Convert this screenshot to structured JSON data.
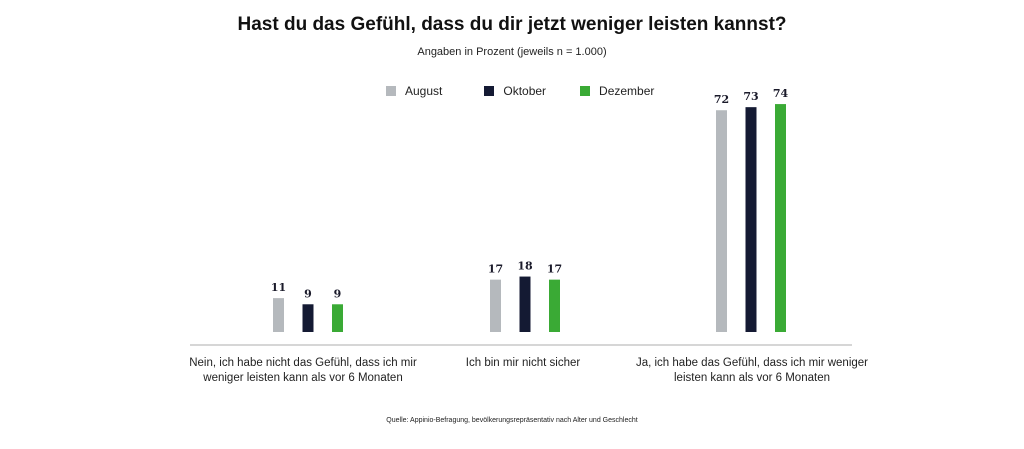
{
  "chart_data": {
    "type": "bar",
    "title": "Hast du das Gefühl, dass du dir jetzt weniger leisten kannst?",
    "subtitle": "Angaben in Prozent (jeweils n = 1.000)",
    "categories": [
      "Nein, ich habe nicht das Gefühl, dass ich mir weniger leisten kann als vor 6 Monaten",
      "Ich bin mir nicht sicher",
      "Ja, ich habe das Gefühl, dass ich mir weniger leisten kann als vor 6 Monaten"
    ],
    "series": [
      {
        "name": "August",
        "color": "#b5b9bd",
        "values": [
          11,
          17,
          72
        ]
      },
      {
        "name": "Oktober",
        "color": "#141a33",
        "values": [
          9,
          18,
          73
        ]
      },
      {
        "name": "Dezember",
        "color": "#3aaa35",
        "values": [
          9,
          17,
          74
        ]
      }
    ],
    "ylim": [
      0,
      80
    ],
    "grid": false,
    "legend": "top",
    "data_labels": true,
    "source": "Quelle: Appinio-Befragung, bevölkerungsrepräsentativ nach Alter und Geschlecht"
  }
}
